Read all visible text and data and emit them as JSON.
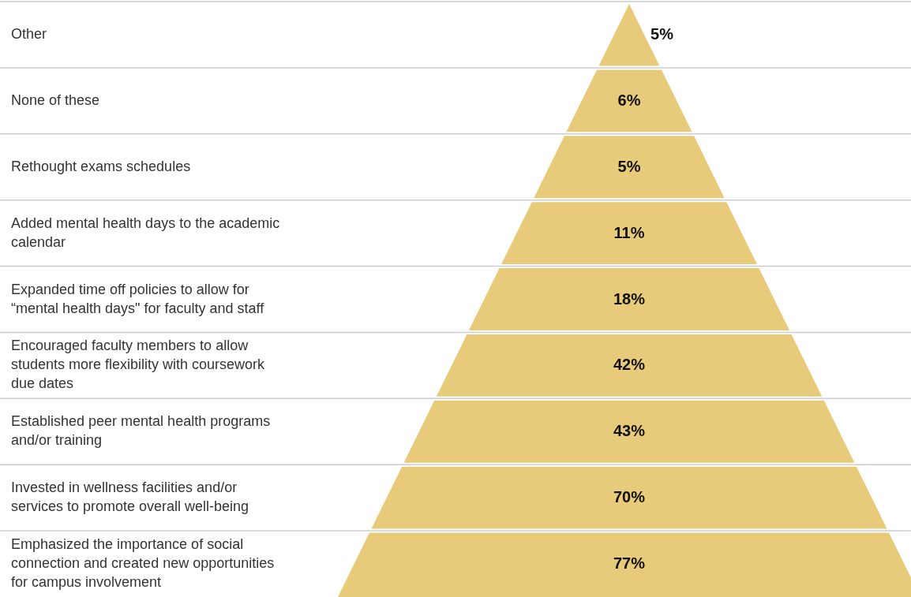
{
  "chart_data": {
    "type": "other",
    "categories": [
      "Other",
      "None of these",
      "Rethought exams schedules",
      "Added mental health days to the academic calendar",
      "Expanded time off policies to allow for “mental health days\" for faculty and staff",
      "Encouraged faculty members to allow students more flexibility with coursework due dates",
      "Established peer mental health programs and/or training",
      "Invested in wellness facilities and/or services to promote overall well-being",
      "Emphasized the importance of social connection and created new opportunities for campus involvement"
    ],
    "values": [
      5,
      6,
      5,
      11,
      18,
      42,
      43,
      70,
      77
    ],
    "color": "#e8cb7a",
    "value_labels": [
      "5%",
      "6%",
      "5%",
      "11%",
      "18%",
      "42%",
      "43%",
      "70%",
      "77%"
    ]
  }
}
